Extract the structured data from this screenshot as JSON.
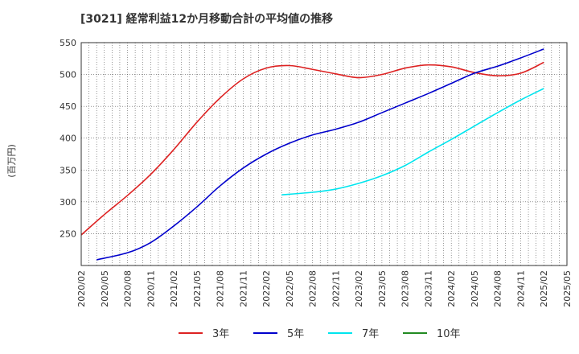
{
  "chart_data": {
    "type": "line",
    "title": "[3021]  経常利益12か月移動合計の平均値の推移",
    "xlabel": "",
    "ylabel": "(百万円)",
    "ylim": [
      200,
      550
    ],
    "yticks": [
      250,
      300,
      350,
      400,
      450,
      500,
      550
    ],
    "x_tick_labels": [
      "2020/02",
      "2020/05",
      "2020/08",
      "2020/11",
      "2021/02",
      "2021/05",
      "2021/08",
      "2021/11",
      "2022/02",
      "2022/05",
      "2022/08",
      "2022/11",
      "2023/02",
      "2023/05",
      "2023/08",
      "2023/11",
      "2024/02",
      "2024/05",
      "2024/08",
      "2024/11",
      "2025/02",
      "2025/05"
    ],
    "grid": true,
    "legend_position": "bottom",
    "series": [
      {
        "name": "3年",
        "color": "#dd2222",
        "points": [
          [
            "2020/02",
            248
          ],
          [
            "2020/05",
            280
          ],
          [
            "2020/08",
            310
          ],
          [
            "2020/11",
            343
          ],
          [
            "2021/02",
            382
          ],
          [
            "2021/05",
            425
          ],
          [
            "2021/08",
            463
          ],
          [
            "2021/11",
            493
          ],
          [
            "2022/02",
            510
          ],
          [
            "2022/05",
            514
          ],
          [
            "2022/08",
            508
          ],
          [
            "2022/11",
            501
          ],
          [
            "2023/02",
            495
          ],
          [
            "2023/05",
            500
          ],
          [
            "2023/08",
            510
          ],
          [
            "2023/11",
            515
          ],
          [
            "2024/02",
            512
          ],
          [
            "2024/05",
            503
          ],
          [
            "2024/08",
            498
          ],
          [
            "2024/11",
            502
          ],
          [
            "2025/02",
            519
          ]
        ]
      },
      {
        "name": "5年",
        "color": "#0000cc",
        "points": [
          [
            "2020/04",
            209
          ],
          [
            "2020/08",
            220
          ],
          [
            "2020/11",
            236
          ],
          [
            "2021/02",
            262
          ],
          [
            "2021/05",
            292
          ],
          [
            "2021/08",
            325
          ],
          [
            "2021/11",
            353
          ],
          [
            "2022/02",
            375
          ],
          [
            "2022/05",
            392
          ],
          [
            "2022/08",
            405
          ],
          [
            "2022/11",
            414
          ],
          [
            "2023/02",
            425
          ],
          [
            "2023/05",
            440
          ],
          [
            "2023/08",
            455
          ],
          [
            "2023/11",
            470
          ],
          [
            "2024/02",
            486
          ],
          [
            "2024/05",
            502
          ],
          [
            "2024/08",
            513
          ],
          [
            "2024/11",
            526
          ],
          [
            "2025/02",
            540
          ]
        ]
      },
      {
        "name": "7年",
        "color": "#00e5ee",
        "points": [
          [
            "2022/04",
            311
          ],
          [
            "2022/08",
            315
          ],
          [
            "2022/11",
            320
          ],
          [
            "2023/02",
            329
          ],
          [
            "2023/05",
            341
          ],
          [
            "2023/08",
            357
          ],
          [
            "2023/11",
            378
          ],
          [
            "2024/02",
            398
          ],
          [
            "2024/05",
            419
          ],
          [
            "2024/08",
            440
          ],
          [
            "2024/11",
            460
          ],
          [
            "2025/02",
            478
          ]
        ]
      },
      {
        "name": "10年",
        "color": "#228b22",
        "points": []
      }
    ]
  }
}
